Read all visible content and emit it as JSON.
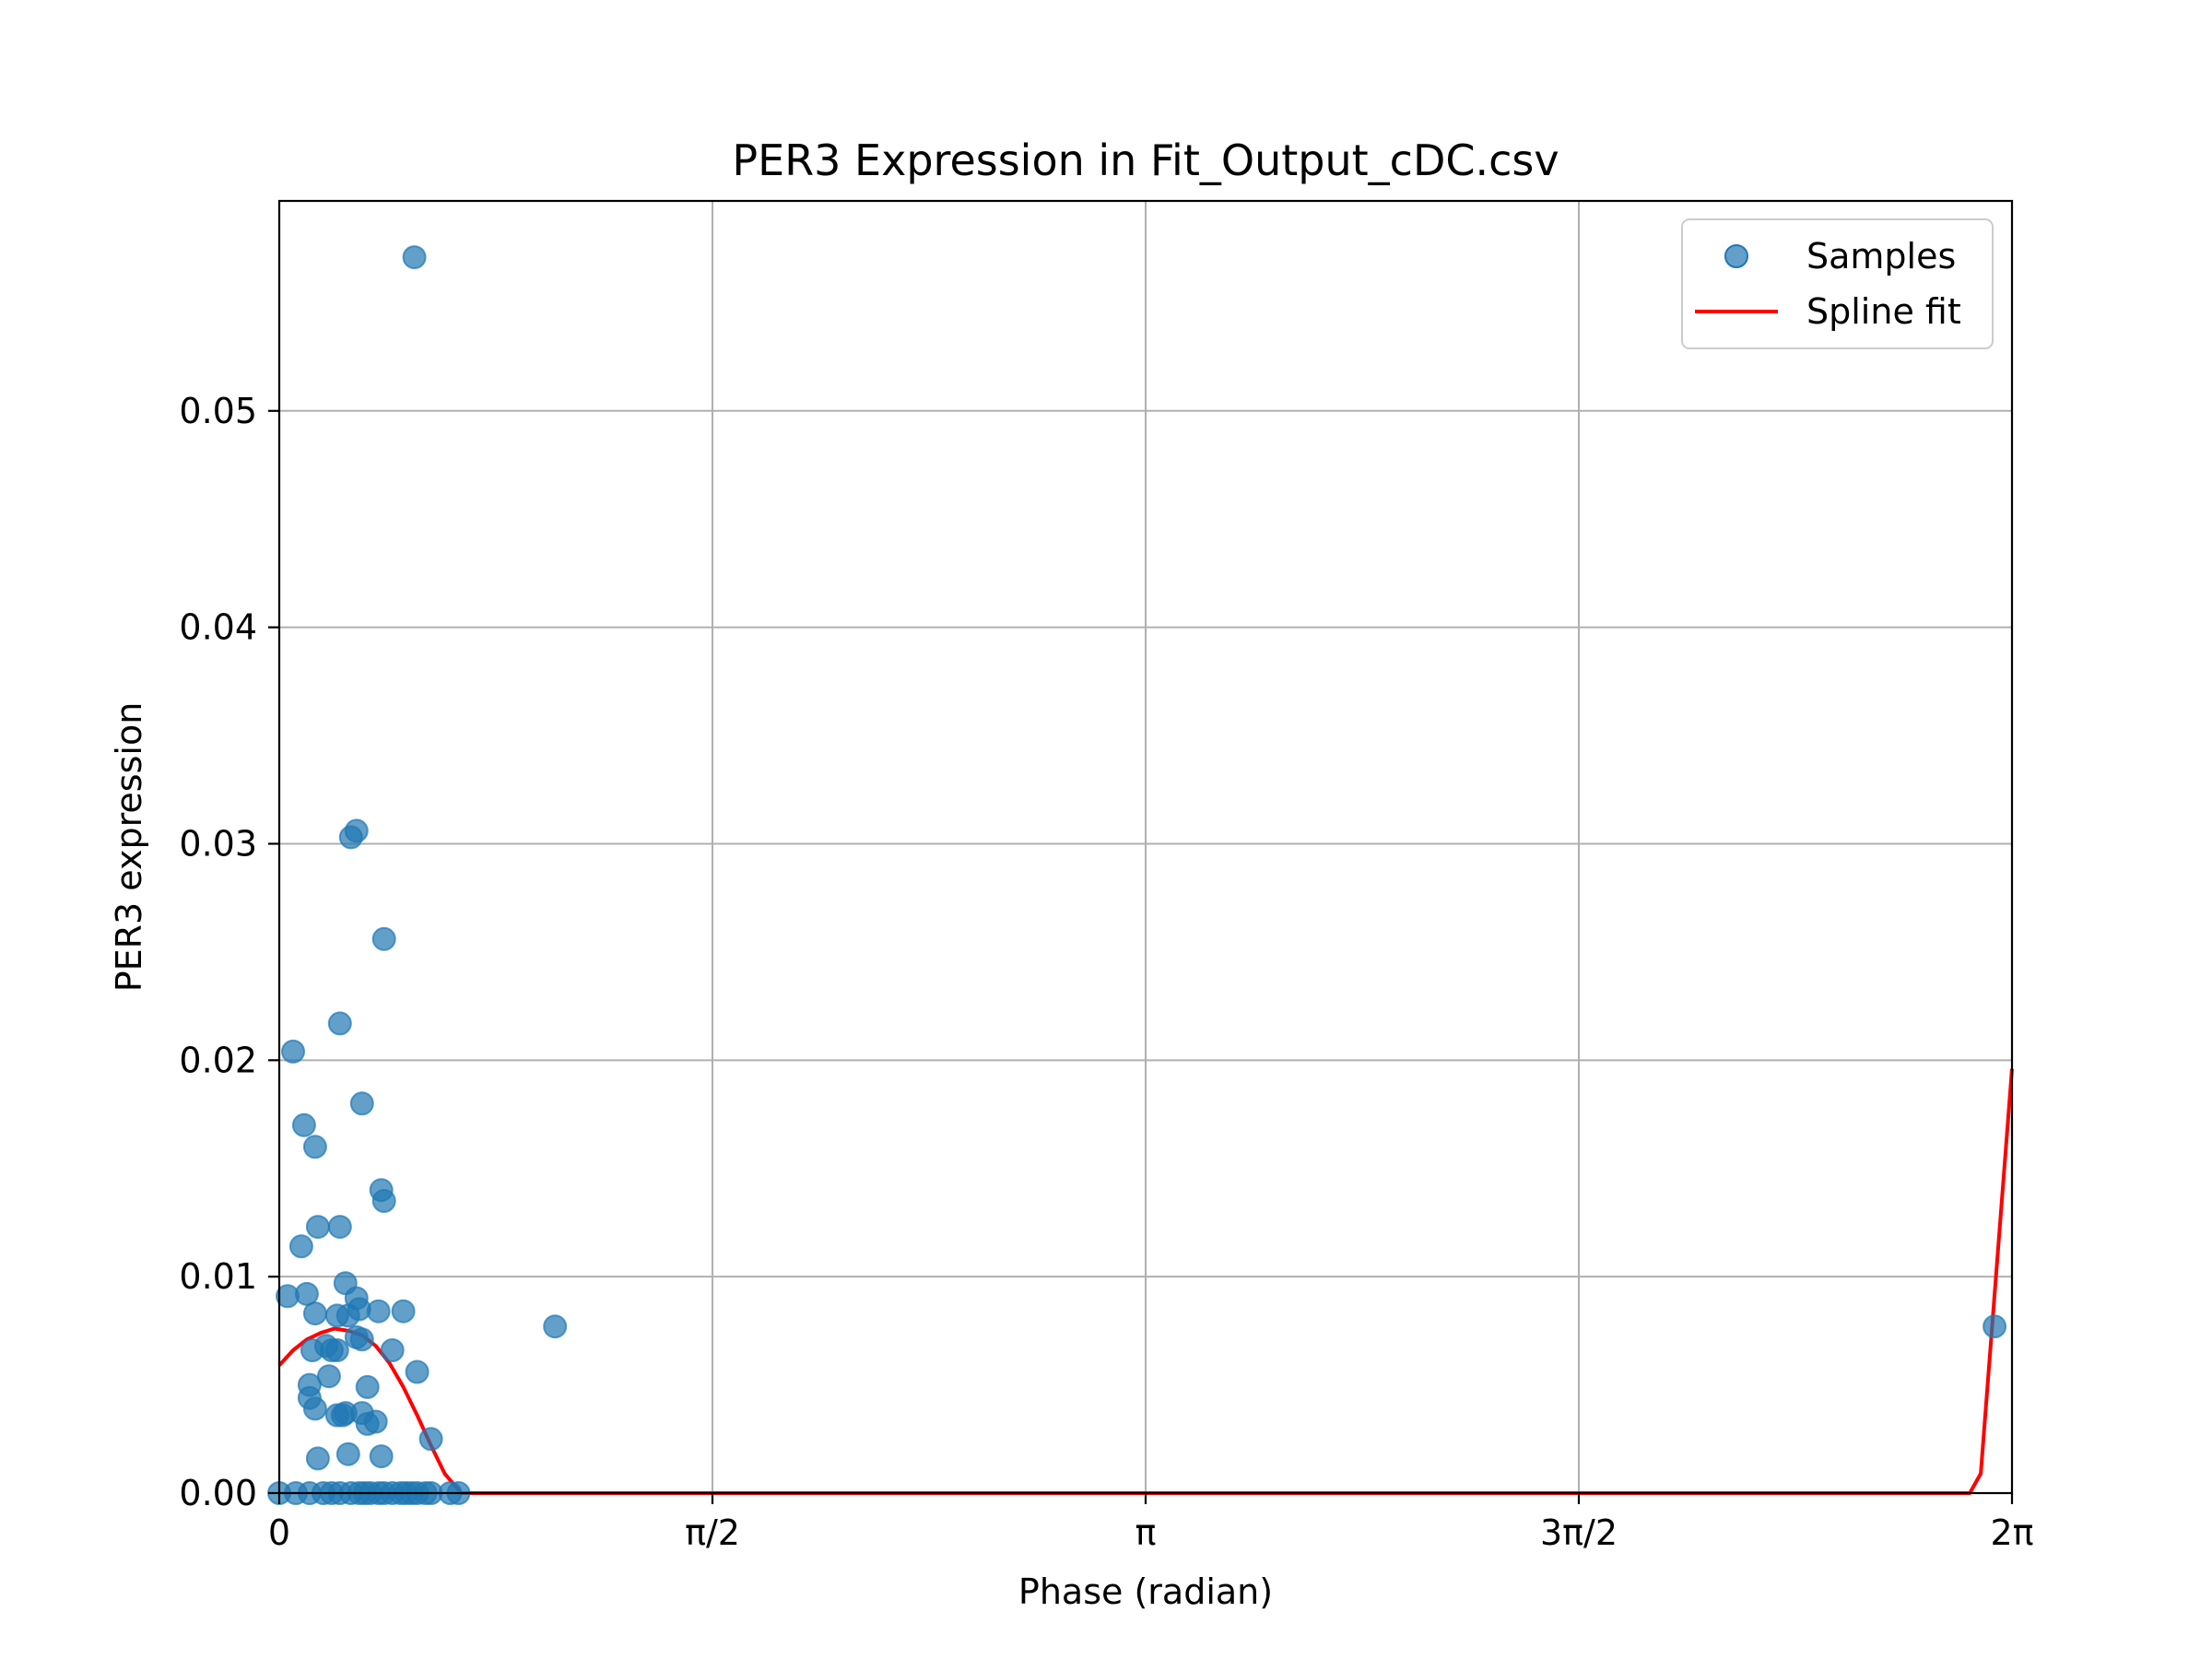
{
  "chart_data": {
    "type": "scatter",
    "title": "PER3 Expression in Fit_Output_cDC.csv",
    "xlabel": "Phase (radian)",
    "ylabel": "PER3 expression",
    "xlim": [
      0,
      6.2832
    ],
    "ylim": [
      0,
      0.0597
    ],
    "grid": true,
    "legend_position": "top-right",
    "colors": {
      "samples": "#1f77b4",
      "spline": "#ff0000"
    },
    "x_ticks": [
      {
        "value": 0,
        "label": "0"
      },
      {
        "value": 1.5708,
        "label": "π/2"
      },
      {
        "value": 3.1416,
        "label": "π"
      },
      {
        "value": 4.7124,
        "label": "3π/2"
      },
      {
        "value": 6.2832,
        "label": "2π"
      }
    ],
    "y_ticks": [
      {
        "value": 0.0,
        "label": "0.00"
      },
      {
        "value": 0.01,
        "label": "0.01"
      },
      {
        "value": 0.02,
        "label": "0.02"
      },
      {
        "value": 0.03,
        "label": "0.03"
      },
      {
        "value": 0.04,
        "label": "0.04"
      },
      {
        "value": 0.05,
        "label": "0.05"
      }
    ],
    "series": [
      {
        "name": "Samples",
        "kind": "scatter",
        "points": [
          [
            0.49,
            0.0571
          ],
          [
            0.28,
            0.0306
          ],
          [
            0.26,
            0.0303
          ],
          [
            0.38,
            0.0256
          ],
          [
            0.22,
            0.0217
          ],
          [
            0.05,
            0.0204
          ],
          [
            0.3,
            0.018
          ],
          [
            0.09,
            0.017
          ],
          [
            0.13,
            0.016
          ],
          [
            0.37,
            0.014
          ],
          [
            0.38,
            0.0135
          ],
          [
            0.14,
            0.0123
          ],
          [
            0.22,
            0.0123
          ],
          [
            0.08,
            0.0114
          ],
          [
            0.24,
            0.0097
          ],
          [
            0.03,
            0.0091
          ],
          [
            0.1,
            0.0092
          ],
          [
            0.28,
            0.009
          ],
          [
            0.13,
            0.0083
          ],
          [
            0.21,
            0.0082
          ],
          [
            0.25,
            0.0082
          ],
          [
            0.29,
            0.0085
          ],
          [
            0.36,
            0.0084
          ],
          [
            0.45,
            0.0084
          ],
          [
            1.0,
            0.0077
          ],
          [
            0.17,
            0.0068
          ],
          [
            0.19,
            0.0066
          ],
          [
            0.3,
            0.0071
          ],
          [
            0.28,
            0.0072
          ],
          [
            0.12,
            0.0066
          ],
          [
            0.21,
            0.0066
          ],
          [
            0.41,
            0.0066
          ],
          [
            0.5,
            0.0056
          ],
          [
            0.18,
            0.0054
          ],
          [
            0.11,
            0.005
          ],
          [
            0.32,
            0.0049
          ],
          [
            0.11,
            0.0044
          ],
          [
            0.13,
            0.0039
          ],
          [
            0.23,
            0.0036
          ],
          [
            0.24,
            0.0037
          ],
          [
            0.21,
            0.0036
          ],
          [
            0.3,
            0.0037
          ],
          [
            0.35,
            0.0033
          ],
          [
            0.32,
            0.0032
          ],
          [
            0.55,
            0.0025
          ],
          [
            0.14,
            0.0016
          ],
          [
            0.25,
            0.0018
          ],
          [
            0.37,
            0.0017
          ],
          [
            6.22,
            0.0077
          ],
          [
            0.0,
            0.0
          ],
          [
            0.06,
            0.0
          ],
          [
            0.11,
            0.0
          ],
          [
            0.16,
            0.0
          ],
          [
            0.19,
            0.0
          ],
          [
            0.22,
            0.0
          ],
          [
            0.26,
            0.0
          ],
          [
            0.29,
            0.0
          ],
          [
            0.31,
            0.0
          ],
          [
            0.33,
            0.0
          ],
          [
            0.36,
            0.0
          ],
          [
            0.38,
            0.0
          ],
          [
            0.41,
            0.0
          ],
          [
            0.44,
            0.0
          ],
          [
            0.46,
            0.0
          ],
          [
            0.48,
            0.0
          ],
          [
            0.5,
            0.0
          ],
          [
            0.53,
            0.0
          ],
          [
            0.55,
            0.0
          ],
          [
            0.62,
            0.0
          ],
          [
            0.65,
            0.0
          ]
        ]
      },
      {
        "name": "Spline fit",
        "kind": "line",
        "points": [
          [
            0.0,
            0.0059
          ],
          [
            0.05,
            0.0066
          ],
          [
            0.1,
            0.0071
          ],
          [
            0.15,
            0.0074
          ],
          [
            0.2,
            0.0076
          ],
          [
            0.25,
            0.0075
          ],
          [
            0.3,
            0.0073
          ],
          [
            0.35,
            0.0068
          ],
          [
            0.4,
            0.006
          ],
          [
            0.45,
            0.0049
          ],
          [
            0.5,
            0.0036
          ],
          [
            0.55,
            0.0022
          ],
          [
            0.6,
            0.0009
          ],
          [
            0.66,
            0.0
          ],
          [
            1.0,
            0.0
          ],
          [
            2.0,
            0.0
          ],
          [
            3.0,
            0.0
          ],
          [
            4.0,
            0.0
          ],
          [
            5.0,
            0.0
          ],
          [
            5.8,
            0.0
          ],
          [
            6.13,
            0.0
          ],
          [
            6.17,
            0.0009
          ],
          [
            6.2832,
            0.0196
          ]
        ]
      }
    ]
  }
}
